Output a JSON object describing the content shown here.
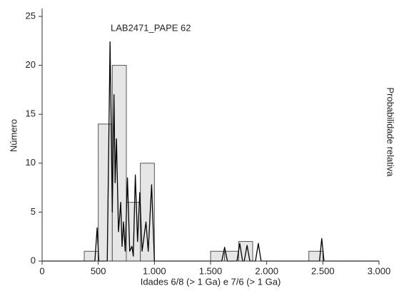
{
  "chart_data": {
    "type": "histogram",
    "title": "LAB2471_PAPE 62",
    "xlabel": "Idades 6/8 (> 1 Ga) e 7/6 (> 1 Ga)",
    "ylabel": "Número",
    "y2label": "Probabilidade relativa",
    "bins": [
      375,
      500,
      625,
      750,
      875,
      1000,
      1125,
      1250,
      1375,
      1500,
      1625,
      1750,
      1875,
      2000,
      2125,
      2250,
      2375,
      2500
    ],
    "values": [
      1,
      14,
      20,
      6,
      10,
      0,
      0,
      0,
      0,
      1,
      1,
      2,
      0,
      0,
      0,
      0,
      1
    ],
    "color": "#e6e6e6",
    "curve": {
      "color": "#000000",
      "x": [
        0,
        470,
        490,
        505,
        580,
        605,
        625,
        640,
        650,
        662,
        680,
        700,
        712,
        725,
        740,
        760,
        780,
        800,
        812,
        830,
        850,
        870,
        890,
        925,
        945,
        975,
        1000,
        1600,
        1625,
        1650,
        1735,
        1760,
        1785,
        1800,
        1825,
        1850,
        1900,
        1925,
        1950,
        2470,
        2490,
        2510,
        3000
      ],
      "values": [
        0,
        0,
        3.4,
        0,
        0,
        22.4,
        5,
        17,
        8,
        12.5,
        3,
        6,
        1.5,
        4,
        1,
        8.5,
        1,
        1.5,
        0.5,
        8.8,
        2,
        7,
        1,
        4,
        1,
        7.8,
        0,
        0,
        1.4,
        0,
        0,
        1.8,
        0,
        0,
        1.6,
        0,
        0,
        1.8,
        0,
        0,
        2.3,
        0,
        0
      ]
    },
    "xlim": [
      0,
      3000
    ],
    "xticks": [
      0,
      500,
      {
        "value": 1000,
        "label": "1.000"
      },
      {
        "value": 1500,
        "label": "1.500"
      },
      {
        "value": 2000,
        "label": "2.000"
      },
      {
        "value": 2500,
        "label": "2.500"
      },
      {
        "value": 3000,
        "label": "3.000"
      }
    ],
    "ylim": [
      0,
      25
    ],
    "yticks": [
      0,
      5,
      10,
      15,
      20,
      25
    ]
  }
}
